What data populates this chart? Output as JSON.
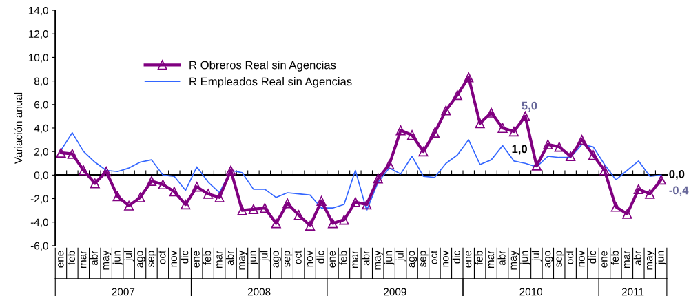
{
  "chart_data": {
    "type": "line",
    "ylabel": "Variación anual",
    "categories": [
      "ene",
      "feb",
      "mar",
      "abr",
      "may",
      "jun",
      "jul",
      "ago",
      "sep",
      "oct",
      "nov",
      "dic",
      "ene",
      "feb",
      "mar",
      "abr",
      "may",
      "jun",
      "jul",
      "ago",
      "sep",
      "oct",
      "nov",
      "dic",
      "ene",
      "feb",
      "mar",
      "abr",
      "may",
      "jun",
      "jul",
      "ago",
      "sep",
      "oct",
      "nov",
      "dic",
      "ene",
      "feb",
      "mar",
      "abr",
      "may",
      "jun",
      "jul",
      "ago",
      "sep",
      "oct",
      "nov",
      "dic",
      "ene",
      "feb",
      "mar",
      "abr",
      "may",
      "jun"
    ],
    "series": [
      {
        "name": "R Obreros Real sin Agencias",
        "color": "#800080",
        "marker": "triangle",
        "values": [
          1.9,
          1.8,
          0.4,
          -0.7,
          0.3,
          -1.8,
          -2.6,
          -1.9,
          -0.5,
          -0.8,
          -1.4,
          -2.5,
          -1.0,
          -1.6,
          -1.9,
          0.4,
          -3.0,
          -2.9,
          -2.8,
          -4.1,
          -2.4,
          -3.4,
          -4.3,
          -2.2,
          -4.1,
          -3.8,
          -2.3,
          -2.5,
          -0.3,
          0.9,
          3.8,
          3.4,
          2.0,
          3.6,
          5.5,
          6.8,
          8.3,
          4.4,
          5.3,
          4.0,
          3.7,
          5.0,
          0.8,
          2.6,
          2.4,
          1.6,
          3.0,
          1.7,
          0.4,
          -2.7,
          -3.3,
          -1.2,
          -1.6,
          -0.4
        ],
        "value_labels": [
          null,
          null,
          null,
          null,
          null,
          null,
          null,
          null,
          null,
          null,
          null,
          null,
          null,
          null,
          null,
          null,
          null,
          null,
          null,
          null,
          null,
          null,
          null,
          null,
          null,
          null,
          null,
          null,
          null,
          null,
          null,
          null,
          null,
          null,
          null,
          null,
          null,
          null,
          null,
          null,
          null,
          "5,0",
          null,
          null,
          null,
          null,
          null,
          null,
          null,
          null,
          null,
          null,
          null,
          "-0,4"
        ]
      },
      {
        "name": "R Empleados Real sin Agencias",
        "color": "#3366ff",
        "marker": "none",
        "values": [
          2.1,
          3.6,
          2.0,
          1.1,
          0.4,
          0.3,
          0.6,
          1.1,
          1.3,
          0.0,
          -0.1,
          -1.3,
          0.7,
          -0.6,
          -1.5,
          0.4,
          0.2,
          -1.2,
          -1.2,
          -1.9,
          -1.5,
          -1.6,
          -1.7,
          -2.8,
          -2.8,
          -2.5,
          0.4,
          -3.0,
          -0.6,
          0.6,
          0.1,
          1.6,
          -0.1,
          -0.2,
          1.0,
          1.7,
          3.0,
          0.9,
          1.3,
          2.5,
          1.2,
          1.0,
          0.7,
          1.6,
          1.5,
          1.5,
          2.6,
          2.4,
          0.9,
          -0.4,
          0.4,
          1.2,
          -0.1,
          0.0
        ],
        "value_labels": [
          null,
          null,
          null,
          null,
          null,
          null,
          null,
          null,
          null,
          null,
          null,
          null,
          null,
          null,
          null,
          null,
          null,
          null,
          null,
          null,
          null,
          null,
          null,
          null,
          null,
          null,
          null,
          null,
          null,
          null,
          null,
          null,
          null,
          null,
          null,
          null,
          null,
          null,
          null,
          null,
          null,
          "1,0",
          null,
          null,
          null,
          null,
          null,
          null,
          null,
          null,
          null,
          null,
          null,
          "0,0"
        ]
      }
    ],
    "ylim": [
      -6,
      14
    ],
    "yticks": [
      {
        "value": -6,
        "label": "-6,0"
      },
      {
        "value": -4,
        "label": "-4,0"
      },
      {
        "value": -2,
        "label": "-2,0"
      },
      {
        "value": 0,
        "label": "0,0"
      },
      {
        "value": 2,
        "label": "2,0"
      },
      {
        "value": 4,
        "label": "4,0"
      },
      {
        "value": 6,
        "label": "6,0"
      },
      {
        "value": 8,
        "label": "8,0"
      },
      {
        "value": 10,
        "label": "10,0"
      },
      {
        "value": 12,
        "label": "12,0"
      },
      {
        "value": 14,
        "label": "14,0"
      }
    ],
    "annotations": [
      "2007",
      "2008",
      "2009",
      "2010",
      "2011"
    ],
    "legend": "top left"
  }
}
